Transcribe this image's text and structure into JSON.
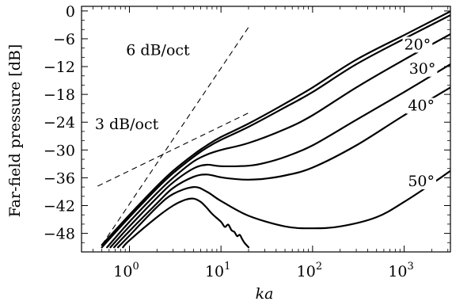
{
  "chart_data": {
    "type": "line",
    "xscale": "log",
    "xlim": [
      0.3,
      3200
    ],
    "ylim": [
      -52,
      1
    ],
    "xlabel": "ka",
    "ylabel": "Far-field pressure [dB]",
    "yticks": [
      0,
      -6,
      -12,
      -18,
      -24,
      -30,
      -36,
      -42,
      -48
    ],
    "ytick_labels": [
      "0",
      "−6",
      "−12",
      "−18",
      "−24",
      "−30",
      "−36",
      "−42",
      "−48"
    ],
    "xticks": [
      1,
      10,
      100,
      1000
    ],
    "xtick_labels": [
      {
        "base": "10",
        "exp": "0"
      },
      {
        "base": "10",
        "exp": "1"
      },
      {
        "base": "10",
        "exp": "2"
      },
      {
        "base": "10",
        "exp": "3"
      }
    ],
    "grid": false,
    "legend": "none",
    "series": [
      {
        "label": "",
        "points": [
          [
            0.5,
            -50.5
          ],
          [
            1,
            -44
          ],
          [
            2,
            -37.8
          ],
          [
            3,
            -34.5
          ],
          [
            5,
            -31
          ],
          [
            7,
            -29
          ],
          [
            10,
            -27.2
          ],
          [
            20,
            -24.3
          ],
          [
            50,
            -20
          ],
          [
            100,
            -16.5
          ],
          [
            300,
            -10.5
          ],
          [
            1000,
            -5.2
          ],
          [
            3200,
            -0.1
          ]
        ]
      },
      {
        "label": "20°",
        "points": [
          [
            0.5,
            -51
          ],
          [
            1,
            -44.5
          ],
          [
            2,
            -38.3
          ],
          [
            3,
            -35
          ],
          [
            5,
            -31.5
          ],
          [
            7,
            -29.5
          ],
          [
            10,
            -27.8
          ],
          [
            20,
            -25
          ],
          [
            50,
            -20.8
          ],
          [
            100,
            -17.5
          ],
          [
            300,
            -11.5
          ],
          [
            1000,
            -6
          ],
          [
            3200,
            -0.9
          ]
        ]
      },
      {
        "label": "30°",
        "points": [
          [
            0.57,
            -51
          ],
          [
            1,
            -45.5
          ],
          [
            2,
            -39.3
          ],
          [
            3,
            -36
          ],
          [
            5,
            -32.5
          ],
          [
            7,
            -31
          ],
          [
            10,
            -30
          ],
          [
            20,
            -28.5
          ],
          [
            50,
            -25.5
          ],
          [
            100,
            -22.5
          ],
          [
            300,
            -16.5
          ],
          [
            1000,
            -10.5
          ],
          [
            3200,
            -5
          ]
        ]
      },
      {
        "label": "40°",
        "points": [
          [
            0.62,
            -51
          ],
          [
            1,
            -46.5
          ],
          [
            2,
            -40.3
          ],
          [
            3,
            -37
          ],
          [
            5,
            -34
          ],
          [
            7,
            -33.2
          ],
          [
            10,
            -33.5
          ],
          [
            20,
            -33.4
          ],
          [
            30,
            -32.8
          ],
          [
            50,
            -31.5
          ],
          [
            100,
            -29
          ],
          [
            300,
            -23.5
          ],
          [
            1000,
            -17.5
          ],
          [
            3200,
            -11.5
          ]
        ]
      },
      {
        "label": "",
        "points": [
          [
            0.68,
            -51
          ],
          [
            1,
            -47.5
          ],
          [
            2,
            -41.5
          ],
          [
            3,
            -38.2
          ],
          [
            5,
            -35.8
          ],
          [
            7,
            -35.3
          ],
          [
            10,
            -35.9
          ],
          [
            15,
            -36.3
          ],
          [
            20,
            -36.4
          ],
          [
            30,
            -36.2
          ],
          [
            50,
            -35.5
          ],
          [
            100,
            -33.8
          ],
          [
            300,
            -29
          ],
          [
            1000,
            -22.5
          ],
          [
            3200,
            -16.5
          ]
        ]
      },
      {
        "label": "50°",
        "points": [
          [
            0.75,
            -51
          ],
          [
            1,
            -48.5
          ],
          [
            2,
            -42.3
          ],
          [
            3,
            -39.5
          ],
          [
            5,
            -38
          ],
          [
            7,
            -39
          ],
          [
            10,
            -41
          ],
          [
            20,
            -44.2
          ],
          [
            50,
            -46.5
          ],
          [
            100,
            -46.9
          ],
          [
            200,
            -46.5
          ],
          [
            500,
            -44.5
          ],
          [
            1000,
            -41.2
          ],
          [
            2000,
            -37.3
          ],
          [
            3200,
            -34.5
          ]
        ]
      },
      {
        "label": "",
        "points": [
          [
            0.85,
            -51
          ],
          [
            1,
            -49.5
          ],
          [
            2,
            -44.5
          ],
          [
            3,
            -42
          ],
          [
            4,
            -40.8
          ],
          [
            5,
            -40.5
          ],
          [
            6,
            -41.2
          ],
          [
            7,
            -42.5
          ],
          [
            8,
            -43.8
          ],
          [
            10,
            -45.5
          ],
          [
            11,
            -46.6
          ],
          [
            12,
            -46.1
          ],
          [
            13,
            -47.3
          ],
          [
            14,
            -47.7
          ],
          [
            15,
            -48.6
          ],
          [
            16,
            -48.3
          ],
          [
            17,
            -49.2
          ],
          [
            18,
            -50
          ],
          [
            20,
            -51
          ]
        ]
      }
    ],
    "asymptotes": [
      {
        "label": "6 dB/oct",
        "points": [
          [
            0.5,
            -50.5
          ],
          [
            20,
            -3.5
          ]
        ]
      },
      {
        "label": "3 dB/oct",
        "points": [
          [
            0.45,
            -37.8
          ],
          [
            20,
            -22
          ]
        ]
      }
    ],
    "annotations": [
      {
        "text": "6 dB/oct",
        "x": 0.92,
        "y": -9.5
      },
      {
        "text": "3 dB/oct",
        "x": 0.42,
        "y": -25.5
      },
      {
        "text": "20°",
        "x": 1000,
        "y": -8.3
      },
      {
        "text": "30°",
        "x": 1130,
        "y": -13.5
      },
      {
        "text": "40°",
        "x": 1100,
        "y": -21.5
      },
      {
        "text": "50°",
        "x": 1100,
        "y": -37.8
      }
    ]
  }
}
